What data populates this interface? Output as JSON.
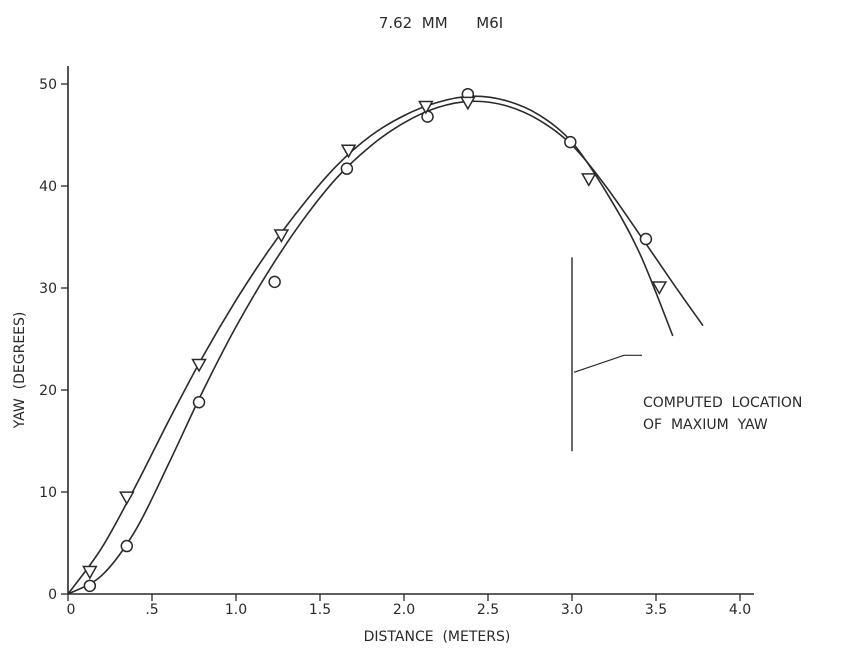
{
  "chart_data": {
    "type": "scatter",
    "title": "7.62  MM      M6I",
    "xlabel": "DISTANCE  (METERS)",
    "ylabel": "YAW  (DEGREES)",
    "xlim": [
      0,
      4.0
    ],
    "ylim": [
      0,
      50
    ],
    "x_ticks": [
      0,
      0.5,
      1.0,
      1.5,
      2.0,
      2.5,
      3.0,
      3.5,
      4.0
    ],
    "x_tick_labels": [
      "0",
      ".5",
      "1.0",
      "1.5",
      "2.0",
      "2.5",
      "3.0",
      "3.5",
      "4.0"
    ],
    "y_ticks": [
      0,
      10,
      20,
      30,
      40,
      50
    ],
    "y_tick_labels": [
      "0",
      "10",
      "20",
      "30",
      "40",
      "50"
    ],
    "grid": false,
    "series": [
      {
        "marker": "circle",
        "points": [
          {
            "x": 0.13,
            "y": 0.8
          },
          {
            "x": 0.35,
            "y": 4.7
          },
          {
            "x": 0.78,
            "y": 18.8
          },
          {
            "x": 1.23,
            "y": 30.6
          },
          {
            "x": 1.66,
            "y": 41.7
          },
          {
            "x": 2.14,
            "y": 46.8
          },
          {
            "x": 2.38,
            "y": 49.0
          },
          {
            "x": 2.99,
            "y": 44.3
          },
          {
            "x": 3.44,
            "y": 34.8
          }
        ],
        "curve": [
          {
            "x": 0.0,
            "y": 0.0
          },
          {
            "x": 0.2,
            "y": 1.8
          },
          {
            "x": 0.4,
            "y": 6.2
          },
          {
            "x": 0.6,
            "y": 12.8
          },
          {
            "x": 0.8,
            "y": 19.8
          },
          {
            "x": 1.0,
            "y": 26.2
          },
          {
            "x": 1.2,
            "y": 31.8
          },
          {
            "x": 1.4,
            "y": 36.7
          },
          {
            "x": 1.6,
            "y": 40.8
          },
          {
            "x": 1.8,
            "y": 43.9
          },
          {
            "x": 2.0,
            "y": 46.2
          },
          {
            "x": 2.2,
            "y": 47.7
          },
          {
            "x": 2.4,
            "y": 48.3
          },
          {
            "x": 2.6,
            "y": 47.9
          },
          {
            "x": 2.8,
            "y": 46.5
          },
          {
            "x": 3.0,
            "y": 44.0
          },
          {
            "x": 3.2,
            "y": 40.0
          },
          {
            "x": 3.4,
            "y": 35.3
          },
          {
            "x": 3.6,
            "y": 30.5
          },
          {
            "x": 3.78,
            "y": 26.3
          }
        ]
      },
      {
        "marker": "triangle-down",
        "points": [
          {
            "x": 0.13,
            "y": 2.2
          },
          {
            "x": 0.35,
            "y": 9.5
          },
          {
            "x": 0.78,
            "y": 22.5
          },
          {
            "x": 1.27,
            "y": 35.2
          },
          {
            "x": 1.67,
            "y": 43.5
          },
          {
            "x": 2.13,
            "y": 47.8
          },
          {
            "x": 2.38,
            "y": 48.2
          },
          {
            "x": 3.1,
            "y": 40.7
          },
          {
            "x": 3.52,
            "y": 30.1
          }
        ],
        "curve": [
          {
            "x": 0.0,
            "y": 0.0
          },
          {
            "x": 0.2,
            "y": 4.5
          },
          {
            "x": 0.4,
            "y": 10.5
          },
          {
            "x": 0.6,
            "y": 17.0
          },
          {
            "x": 0.8,
            "y": 23.2
          },
          {
            "x": 1.0,
            "y": 28.8
          },
          {
            "x": 1.2,
            "y": 33.8
          },
          {
            "x": 1.4,
            "y": 38.2
          },
          {
            "x": 1.6,
            "y": 42.0
          },
          {
            "x": 1.8,
            "y": 44.9
          },
          {
            "x": 2.0,
            "y": 46.9
          },
          {
            "x": 2.2,
            "y": 48.2
          },
          {
            "x": 2.4,
            "y": 48.8
          },
          {
            "x": 2.6,
            "y": 48.4
          },
          {
            "x": 2.8,
            "y": 47.0
          },
          {
            "x": 3.0,
            "y": 44.3
          },
          {
            "x": 3.2,
            "y": 39.5
          },
          {
            "x": 3.4,
            "y": 33.5
          },
          {
            "x": 3.6,
            "y": 25.3
          }
        ]
      }
    ],
    "annotations": [
      {
        "text_lines": [
          "COMPUTED  LOCATION",
          "OF  MAXIUM  YAW"
        ],
        "marker_x": 3.0,
        "y_range": [
          14,
          33
        ]
      }
    ]
  }
}
